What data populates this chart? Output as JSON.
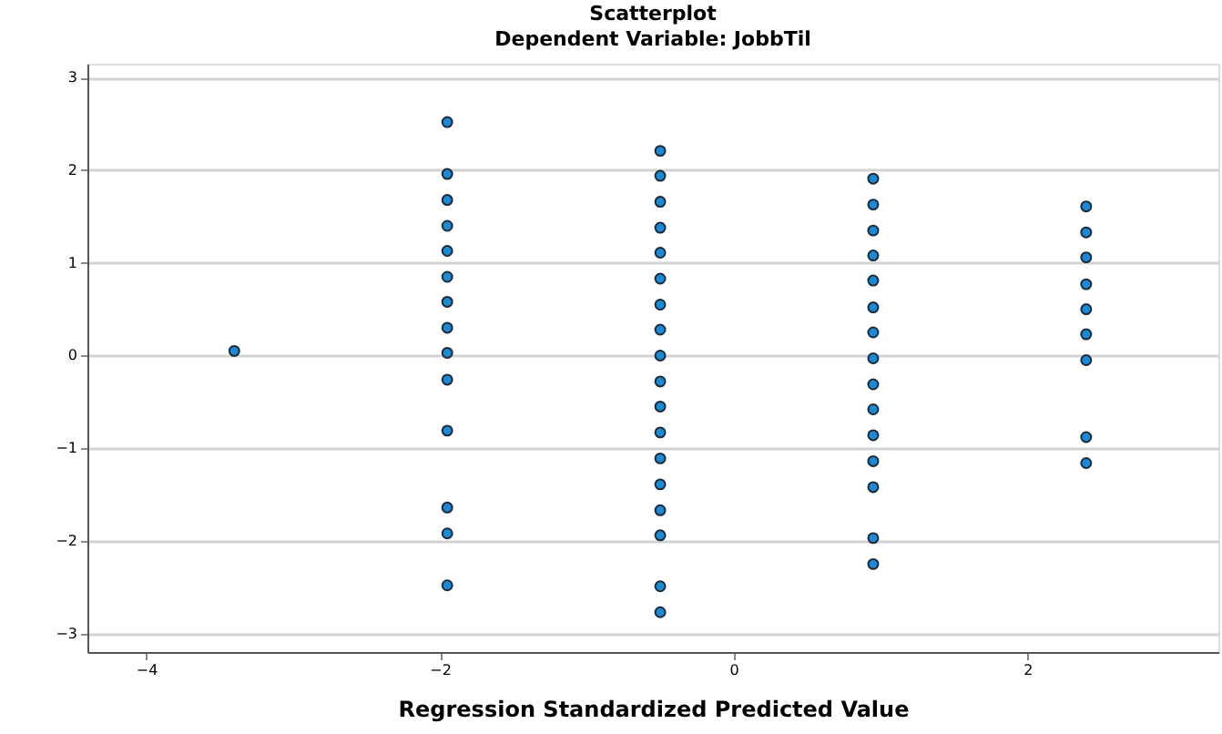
{
  "chart_data": {
    "type": "scatter",
    "title": "Scatterplot",
    "subtitle": "Dependent Variable: JobbTil",
    "xlabel": "Regression Standardized Predicted Value",
    "x": [
      -3.4,
      -1.95,
      -1.95,
      -1.95,
      -1.95,
      -1.95,
      -1.95,
      -1.95,
      -1.95,
      -1.95,
      -1.95,
      -1.95,
      -1.95,
      -1.95,
      -1.95,
      -0.5,
      -0.5,
      -0.5,
      -0.5,
      -0.5,
      -0.5,
      -0.5,
      -0.5,
      -0.5,
      -0.5,
      -0.5,
      -0.5,
      -0.5,
      -0.5,
      -0.5,
      -0.5,
      -0.5,
      -0.5,
      0.95,
      0.95,
      0.95,
      0.95,
      0.95,
      0.95,
      0.95,
      0.95,
      0.95,
      0.95,
      0.95,
      0.95,
      0.95,
      0.95,
      0.95,
      2.4,
      2.4,
      2.4,
      2.4,
      2.4,
      2.4,
      2.4,
      2.4,
      2.4
    ],
    "series": [
      {
        "color": "#1a8ad6",
        "values": [
          0.05,
          2.52,
          1.96,
          1.68,
          1.4,
          1.13,
          0.85,
          0.58,
          0.3,
          0.03,
          -0.26,
          -0.81,
          -1.64,
          -1.92,
          -2.48,
          2.21,
          1.94,
          1.66,
          1.38,
          1.11,
          0.83,
          0.55,
          0.28,
          0.0,
          -0.28,
          -0.55,
          -0.83,
          -1.11,
          -1.39,
          -1.67,
          -1.94,
          -2.49,
          -2.77,
          1.91,
          1.63,
          1.35,
          1.08,
          0.81,
          0.52,
          0.25,
          -0.03,
          -0.31,
          -0.58,
          -0.86,
          -1.14,
          -1.42,
          -1.97,
          -2.25,
          1.61,
          1.33,
          1.06,
          0.77,
          0.5,
          0.23,
          -0.05,
          -0.88,
          -1.16
        ]
      }
    ],
    "xlim": [
      -4.4,
      3.3
    ],
    "ylim": [
      -3.2,
      3.15
    ],
    "xticks": [
      -4,
      -2,
      0,
      2
    ],
    "yticks": [
      -3,
      -2,
      -1,
      0,
      1,
      2,
      3
    ],
    "grid": "y",
    "marker": "circle",
    "legend": false
  }
}
